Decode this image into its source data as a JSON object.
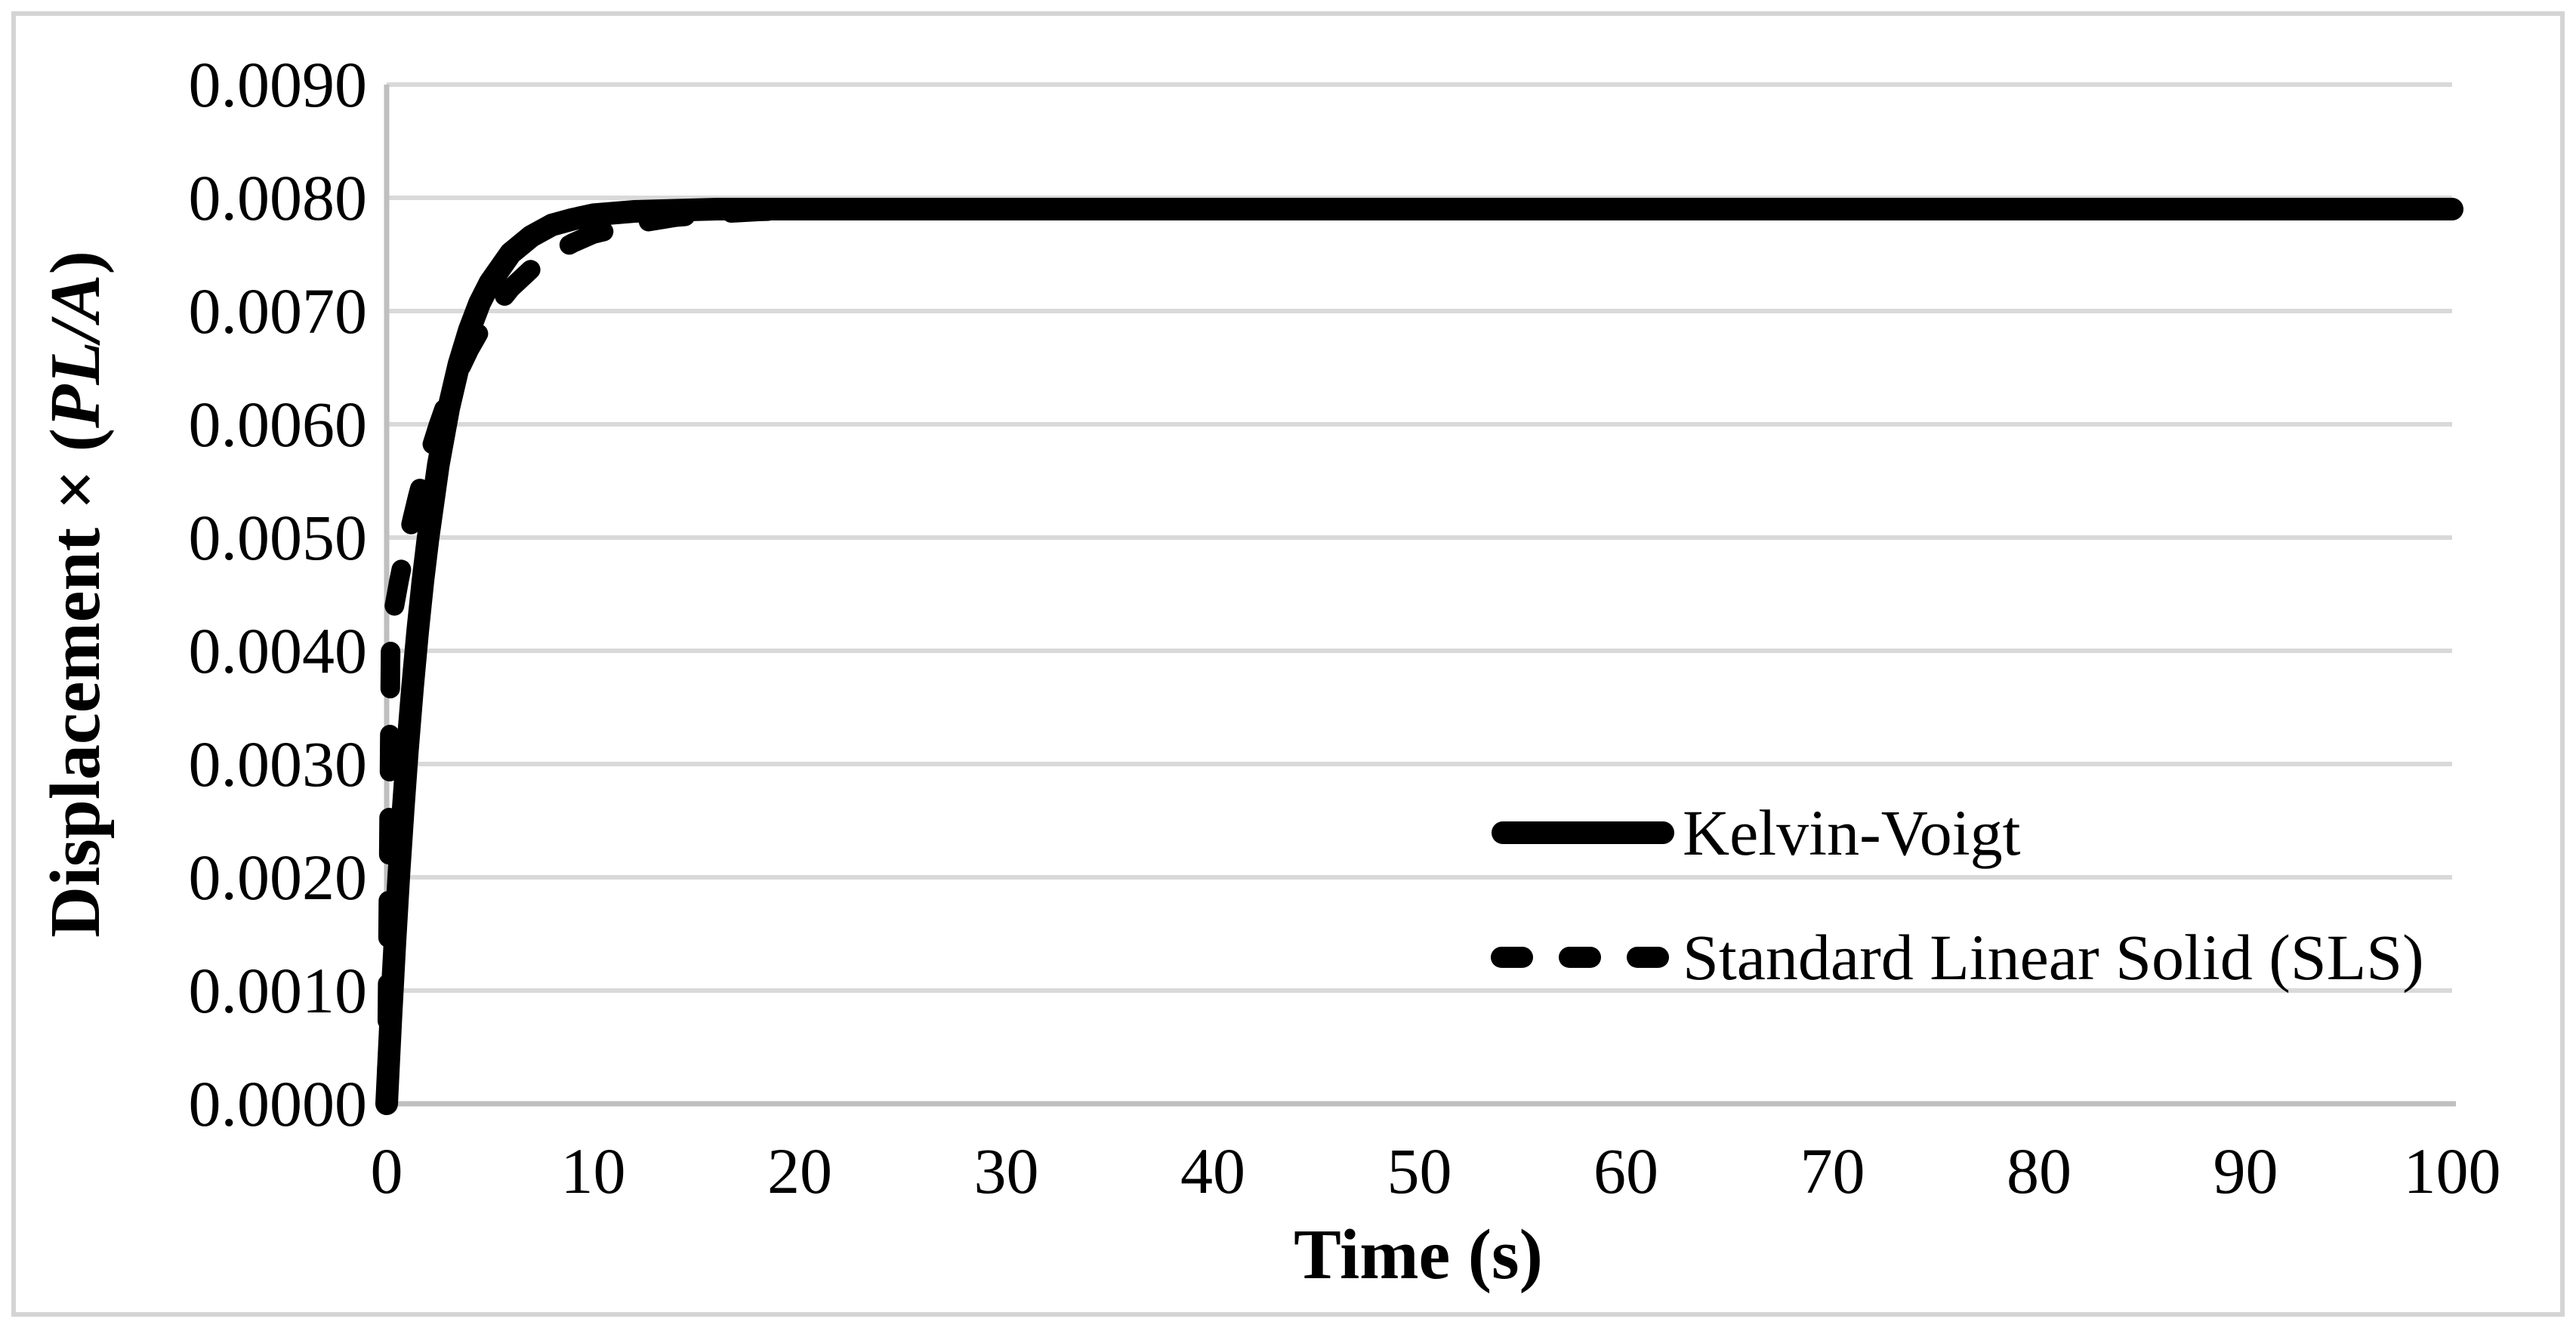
{
  "figure": {
    "background": "#ffffff",
    "border_color": "#d4d4d4"
  },
  "chart_data": {
    "type": "line",
    "title": "",
    "xlabel": "Time (s)",
    "ylabel_prefix": "Displacement × (",
    "ylabel_italic": "PL/A",
    "ylabel_suffix": ")",
    "xlim": [
      0,
      100
    ],
    "ylim": [
      0,
      0.009
    ],
    "grid": "horizontal",
    "legend_position": "inside-right",
    "colors": {
      "series": "#000000",
      "gridline": "#d9d9d9",
      "axis": "#bfbfbf",
      "text": "#000000"
    },
    "x_ticks": [
      {
        "v": 0,
        "label": "0"
      },
      {
        "v": 10,
        "label": "10"
      },
      {
        "v": 20,
        "label": "20"
      },
      {
        "v": 30,
        "label": "30"
      },
      {
        "v": 40,
        "label": "40"
      },
      {
        "v": 50,
        "label": "50"
      },
      {
        "v": 60,
        "label": "60"
      },
      {
        "v": 70,
        "label": "70"
      },
      {
        "v": 80,
        "label": "80"
      },
      {
        "v": 90,
        "label": "90"
      },
      {
        "v": 100,
        "label": "100"
      }
    ],
    "y_ticks": [
      {
        "v": 0.0,
        "label": "0.0000"
      },
      {
        "v": 0.001,
        "label": "0.0010"
      },
      {
        "v": 0.002,
        "label": "0.0020"
      },
      {
        "v": 0.003,
        "label": "0.0030"
      },
      {
        "v": 0.004,
        "label": "0.0040"
      },
      {
        "v": 0.005,
        "label": "0.0050"
      },
      {
        "v": 0.006,
        "label": "0.0060"
      },
      {
        "v": 0.007,
        "label": "0.0070"
      },
      {
        "v": 0.008,
        "label": "0.0080"
      },
      {
        "v": 0.009,
        "label": "0.0090"
      }
    ],
    "series": [
      {
        "name": "Kelvin-Voigt",
        "style": "solid",
        "asymptote": 0.0079,
        "x": [
          0,
          0.2,
          0.4,
          0.6,
          0.8,
          1,
          1.25,
          1.5,
          1.75,
          2,
          2.5,
          3,
          3.5,
          4,
          4.5,
          5,
          6,
          7,
          8,
          9,
          10,
          12,
          14,
          16,
          18,
          20,
          25,
          30,
          40,
          50,
          60,
          70,
          80,
          90,
          100
        ],
        "y": [
          0,
          0.00075,
          0.00143,
          0.00205,
          0.0026,
          0.00311,
          0.00367,
          0.00417,
          0.00461,
          0.00499,
          0.00564,
          0.00614,
          0.00653,
          0.00683,
          0.00707,
          0.00725,
          0.00751,
          0.00766,
          0.00776,
          0.00781,
          0.00785,
          0.00788,
          0.00789,
          0.0079,
          0.0079,
          0.0079,
          0.0079,
          0.0079,
          0.0079,
          0.0079,
          0.0079,
          0.0079,
          0.0079,
          0.0079,
          0.0079
        ]
      },
      {
        "name": "Standard Linear Solid (SLS)",
        "style": "dashed",
        "asymptote": 0.0079,
        "x": [
          0,
          0.2,
          0.4,
          0.6,
          0.8,
          1,
          1.25,
          1.5,
          1.75,
          2,
          2.5,
          3,
          3.5,
          4,
          4.5,
          5,
          6,
          7,
          8,
          9,
          10,
          12,
          14,
          16,
          18,
          20,
          25,
          30,
          40,
          50,
          60,
          70,
          80,
          90,
          100
        ],
        "y": [
          0,
          0.00422,
          0.00442,
          0.00462,
          0.0048,
          0.00497,
          0.00517,
          0.00536,
          0.00553,
          0.0057,
          0.00599,
          0.00625,
          0.00647,
          0.00666,
          0.00682,
          0.00697,
          0.0072,
          0.00737,
          0.0075,
          0.0076,
          0.00768,
          0.00777,
          0.00783,
          0.00786,
          0.00788,
          0.00789,
          0.0079,
          0.0079,
          0.0079,
          0.0079,
          0.0079,
          0.0079,
          0.0079,
          0.0079,
          0.0079
        ]
      }
    ]
  }
}
